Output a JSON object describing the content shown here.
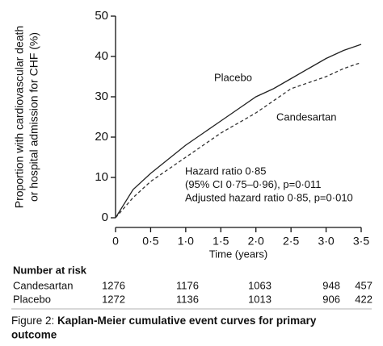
{
  "chart_data": {
    "type": "line",
    "ylabel": [
      "Proportion with cardiovascular death",
      "or hospital admission for CHF (%)"
    ],
    "xlabel": "Time (years)",
    "x": [
      0,
      0.25,
      0.5,
      0.75,
      1,
      1.25,
      1.5,
      1.75,
      2,
      2.25,
      2.5,
      2.75,
      3,
      3.25,
      3.5
    ],
    "series": [
      {
        "name": "Placebo",
        "color": "#222222",
        "style": "solid",
        "values": [
          0,
          7,
          11,
          14.5,
          18,
          21,
          24,
          27,
          30,
          32,
          34.5,
          37,
          39.5,
          41.5,
          43
        ]
      },
      {
        "name": "Candesartan",
        "color": "#333333",
        "style": "dashed",
        "values": [
          0,
          5,
          9,
          12,
          15,
          18,
          21,
          23.5,
          26,
          29,
          32,
          33.5,
          35,
          37,
          38.5
        ]
      }
    ],
    "xlim": [
      0,
      3.5
    ],
    "xticks": [
      {
        "value": 0,
        "label": "0"
      },
      {
        "value": 0.5,
        "label": "0·5"
      },
      {
        "value": 1,
        "label": "1·0"
      },
      {
        "value": 1.5,
        "label": "1·5"
      },
      {
        "value": 2,
        "label": "2·0"
      },
      {
        "value": 2.5,
        "label": "2·5"
      },
      {
        "value": 3,
        "label": "3·0"
      },
      {
        "value": 3.5,
        "label": "3·5"
      }
    ],
    "ylim": [
      0,
      50
    ],
    "yticks": [
      0,
      10,
      20,
      30,
      40,
      50
    ],
    "annotations": [
      "Hazard ratio 0·85",
      "(95% CI 0·75–0·96), p=0·011",
      "Adjusted hazard ratio 0·85, p=0·010"
    ],
    "number_at_risk": {
      "title": "Number at risk",
      "rows": [
        {
          "name": "Candesartan",
          "values": [
            1276,
            1176,
            1063,
            948,
            457
          ]
        },
        {
          "name": "Placebo",
          "values": [
            1272,
            1136,
            1013,
            906,
            422
          ]
        }
      ]
    }
  },
  "caption": {
    "label": "Figure 2: ",
    "text": "Kaplan-Meier cumulative event curves for primary outcome"
  }
}
